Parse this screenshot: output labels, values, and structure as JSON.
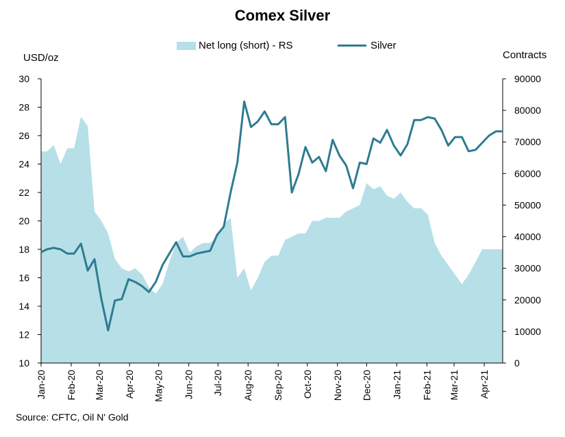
{
  "chart_data": {
    "type": "line",
    "title": "Comex Silver",
    "ylabel": "USD/oz",
    "y2label": "Contracts",
    "source": "Source: CFTC, Oil N' Gold",
    "legend": [
      {
        "label": "Net long (short) - RS",
        "kind": "area",
        "color": "#b7dfe8"
      },
      {
        "label": "Silver",
        "kind": "line",
        "color": "#2e7b90"
      }
    ],
    "ylim": [
      10,
      30
    ],
    "y2lim": [
      0,
      90000
    ],
    "yticks": [
      10,
      12,
      14,
      16,
      18,
      20,
      22,
      24,
      26,
      28,
      30
    ],
    "y2ticks": [
      0,
      10000,
      20000,
      30000,
      40000,
      50000,
      60000,
      70000,
      80000,
      90000
    ],
    "xlim": [
      "2020-01-01",
      "2021-04-20"
    ],
    "x_labels": [
      {
        "date": "2020-01-01",
        "label": "Jan-20"
      },
      {
        "date": "2020-02-01",
        "label": "Feb-20"
      },
      {
        "date": "2020-03-01",
        "label": "Mar-20"
      },
      {
        "date": "2020-04-01",
        "label": "Apr-20"
      },
      {
        "date": "2020-05-01",
        "label": "May-20"
      },
      {
        "date": "2020-06-01",
        "label": "Jun-20"
      },
      {
        "date": "2020-07-01",
        "label": "Jul-20"
      },
      {
        "date": "2020-08-01",
        "label": "Aug-20"
      },
      {
        "date": "2020-09-01",
        "label": "Sep-20"
      },
      {
        "date": "2020-10-01",
        "label": "Oct-20"
      },
      {
        "date": "2020-11-01",
        "label": "Nov-20"
      },
      {
        "date": "2020-12-01",
        "label": "Dec-20"
      },
      {
        "date": "2021-01-01",
        "label": "Jan-21"
      },
      {
        "date": "2021-02-01",
        "label": "Feb-21"
      },
      {
        "date": "2021-03-01",
        "label": "Mar-21"
      },
      {
        "date": "2021-04-01",
        "label": "Apr-21"
      }
    ],
    "series": [
      {
        "name": "Net long (short) - RS",
        "type": "area",
        "axis": "right",
        "x": [
          "2020-01-01",
          "2020-01-07",
          "2020-01-14",
          "2020-01-21",
          "2020-01-28",
          "2020-02-04",
          "2020-02-11",
          "2020-02-18",
          "2020-02-25",
          "2020-03-03",
          "2020-03-10",
          "2020-03-17",
          "2020-03-24",
          "2020-03-31",
          "2020-04-07",
          "2020-04-14",
          "2020-04-21",
          "2020-04-28",
          "2020-05-05",
          "2020-05-12",
          "2020-05-19",
          "2020-05-26",
          "2020-06-02",
          "2020-06-09",
          "2020-06-16",
          "2020-06-23",
          "2020-06-30",
          "2020-07-07",
          "2020-07-14",
          "2020-07-21",
          "2020-07-28",
          "2020-08-04",
          "2020-08-11",
          "2020-08-18",
          "2020-08-25",
          "2020-09-01",
          "2020-09-08",
          "2020-09-15",
          "2020-09-22",
          "2020-09-29",
          "2020-10-06",
          "2020-10-13",
          "2020-10-20",
          "2020-10-27",
          "2020-11-03",
          "2020-11-10",
          "2020-11-17",
          "2020-11-24",
          "2020-12-01",
          "2020-12-08",
          "2020-12-15",
          "2020-12-22",
          "2020-12-29",
          "2021-01-05",
          "2021-01-12",
          "2021-01-19",
          "2021-01-26",
          "2021-02-02",
          "2021-02-09",
          "2021-02-16",
          "2021-02-23",
          "2021-03-02",
          "2021-03-09",
          "2021-03-16",
          "2021-03-23",
          "2021-03-30",
          "2021-04-06",
          "2021-04-13",
          "2021-04-20"
        ],
        "values": [
          67000,
          67000,
          69000,
          63000,
          68000,
          68000,
          78000,
          75000,
          48000,
          45000,
          41000,
          33000,
          30000,
          29000,
          30000,
          28000,
          24000,
          22000,
          25000,
          32000,
          38000,
          40000,
          35000,
          37000,
          38000,
          38000,
          40000,
          44000,
          46000,
          27000,
          30000,
          23000,
          27000,
          32000,
          34000,
          34000,
          39000,
          40000,
          41000,
          41000,
          45000,
          45000,
          46000,
          46000,
          46000,
          48000,
          49000,
          50000,
          57000,
          55000,
          56000,
          53000,
          52000,
          54000,
          51000,
          49000,
          49000,
          47000,
          38000,
          34000,
          31000,
          28000,
          25000,
          28000,
          32000,
          36000,
          36000,
          36000,
          36000
        ]
      },
      {
        "name": "Silver",
        "type": "line",
        "axis": "left",
        "x": [
          "2020-01-01",
          "2020-01-07",
          "2020-01-14",
          "2020-01-21",
          "2020-01-28",
          "2020-02-04",
          "2020-02-11",
          "2020-02-18",
          "2020-02-25",
          "2020-03-03",
          "2020-03-10",
          "2020-03-17",
          "2020-03-24",
          "2020-03-31",
          "2020-04-07",
          "2020-04-14",
          "2020-04-21",
          "2020-04-28",
          "2020-05-05",
          "2020-05-12",
          "2020-05-19",
          "2020-05-26",
          "2020-06-02",
          "2020-06-09",
          "2020-06-16",
          "2020-06-23",
          "2020-06-30",
          "2020-07-07",
          "2020-07-14",
          "2020-07-21",
          "2020-07-28",
          "2020-08-04",
          "2020-08-11",
          "2020-08-18",
          "2020-08-25",
          "2020-09-01",
          "2020-09-08",
          "2020-09-15",
          "2020-09-22",
          "2020-09-29",
          "2020-10-06",
          "2020-10-13",
          "2020-10-20",
          "2020-10-27",
          "2020-11-03",
          "2020-11-10",
          "2020-11-17",
          "2020-11-24",
          "2020-12-01",
          "2020-12-08",
          "2020-12-15",
          "2020-12-22",
          "2020-12-29",
          "2021-01-05",
          "2021-01-12",
          "2021-01-19",
          "2021-01-26",
          "2021-02-02",
          "2021-02-09",
          "2021-02-16",
          "2021-02-23",
          "2021-03-02",
          "2021-03-09",
          "2021-03-16",
          "2021-03-23",
          "2021-03-30",
          "2021-04-06",
          "2021-04-13",
          "2021-04-20"
        ],
        "values": [
          17.8,
          18.0,
          18.1,
          18.0,
          17.7,
          17.7,
          18.4,
          16.5,
          17.3,
          14.5,
          12.3,
          14.4,
          14.5,
          15.9,
          15.7,
          15.4,
          15.0,
          15.7,
          16.9,
          17.7,
          18.5,
          17.5,
          17.5,
          17.7,
          17.8,
          17.9,
          19.0,
          19.6,
          22.0,
          24.1,
          28.4,
          26.6,
          27.0,
          27.7,
          26.8,
          26.8,
          27.3,
          22.0,
          23.3,
          25.2,
          24.1,
          24.5,
          23.5,
          25.7,
          24.6,
          23.9,
          22.3,
          24.1,
          24.0,
          25.8,
          25.5,
          26.4,
          25.3,
          24.6,
          25.4,
          27.1,
          27.1,
          27.3,
          27.2,
          26.4,
          25.3,
          25.9,
          25.9,
          24.9,
          25.0,
          25.5,
          26.0,
          26.3,
          26.3
        ]
      }
    ]
  }
}
